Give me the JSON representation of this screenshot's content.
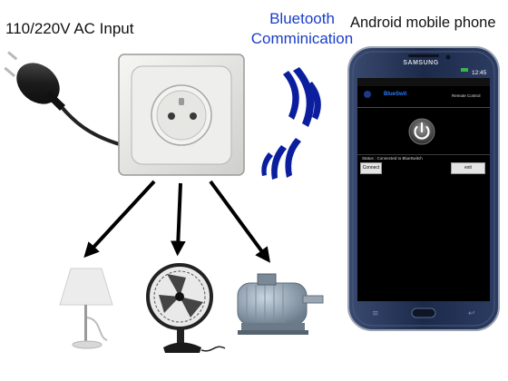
{
  "labels": {
    "ac_input": "110/220V AC Input",
    "bluetooth_line1": "Bluetooth",
    "bluetooth_line2": "Comminication",
    "phone": "Android mobile phone"
  },
  "phone_screen": {
    "brand": "SAMSUNG",
    "time": "12:45",
    "app_title": "BlueSwit",
    "top_right_text": "Remote Control",
    "status_text": "Status : Connected to BlueSwitch",
    "connect_label": "Connect",
    "exit_label": "exit"
  },
  "colors": {
    "bluetooth_text": "#1a3ec8",
    "signal_waves": "#0b1f9e",
    "arrows": "#000000",
    "phone_body": "#1f2f52",
    "screen": "#000000"
  },
  "icons": {
    "plug": "euro-plug-icon",
    "socket": "wall-socket-icon",
    "lamp": "table-lamp-icon",
    "fan": "desk-fan-icon",
    "motor": "electric-motor-icon",
    "power": "power-button-icon"
  }
}
